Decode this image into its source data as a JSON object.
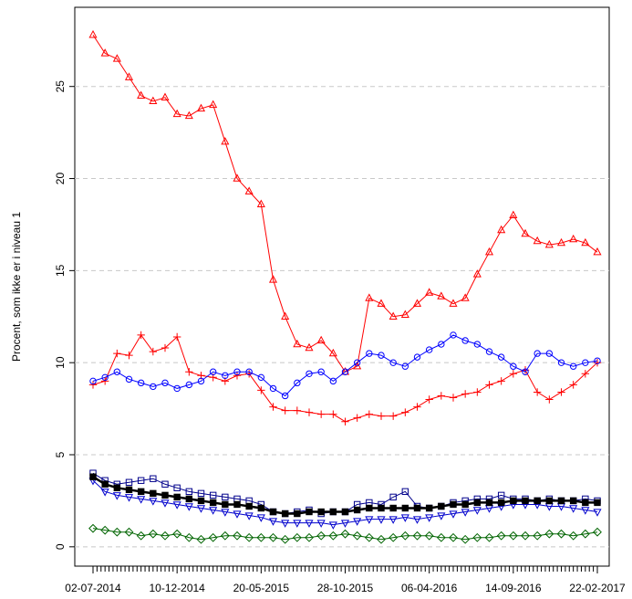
{
  "chart_data": {
    "type": "line",
    "y_label": "Procent, som ikke er i niveau 1",
    "categories": [
      "02-07-2014",
      null,
      null,
      null,
      null,
      null,
      null,
      "10-12-2014",
      null,
      null,
      null,
      null,
      null,
      null,
      "20-05-2015",
      null,
      null,
      null,
      null,
      null,
      null,
      "28-10-2015",
      null,
      null,
      null,
      null,
      null,
      null,
      "06-04-2016",
      null,
      null,
      null,
      null,
      null,
      null,
      "14-09-2016",
      null,
      null,
      null,
      null,
      null,
      null,
      "22-02-2017"
    ],
    "ylim": [
      -1.05,
      29.3
    ],
    "yticks": [
      0,
      5,
      10,
      15,
      20,
      25
    ],
    "grid": true,
    "series": [
      {
        "color": "#ff0000",
        "marker": "triangle-up",
        "values": [
          27.8,
          26.8,
          26.5,
          25.5,
          24.5,
          24.2,
          24.4,
          23.5,
          23.4,
          23.8,
          24.0,
          22.0,
          20.0,
          19.3,
          18.6,
          14.5,
          12.5,
          11.0,
          10.8,
          11.2,
          10.5,
          9.5,
          9.8,
          13.5,
          13.2,
          12.5,
          12.6,
          13.2,
          13.8,
          13.6,
          13.2,
          13.5,
          14.8,
          16.0,
          17.2,
          18.0,
          17.0,
          16.6,
          16.4,
          16.5,
          16.7,
          16.5,
          16.0
        ]
      },
      {
        "color": "#ff0000",
        "marker": "plus",
        "values": [
          8.8,
          9.0,
          10.5,
          10.4,
          11.5,
          10.6,
          10.8,
          11.4,
          9.5,
          9.3,
          9.2,
          9.0,
          9.3,
          9.4,
          8.5,
          7.6,
          7.4,
          7.4,
          7.3,
          7.2,
          7.2,
          6.8,
          7.0,
          7.2,
          7.1,
          7.1,
          7.3,
          7.6,
          8.0,
          8.2,
          8.1,
          8.3,
          8.4,
          8.8,
          9.0,
          9.4,
          9.6,
          8.4,
          8.0,
          8.4,
          8.8,
          9.4,
          10.0
        ]
      },
      {
        "color": "#0000ff",
        "marker": "circle",
        "values": [
          9.0,
          9.2,
          9.5,
          9.1,
          8.9,
          8.7,
          8.9,
          8.6,
          8.8,
          9.0,
          9.5,
          9.3,
          9.5,
          9.5,
          9.2,
          8.6,
          8.2,
          8.9,
          9.4,
          9.5,
          9.0,
          9.5,
          10.0,
          10.5,
          10.4,
          10.0,
          9.8,
          10.3,
          10.7,
          11.0,
          11.5,
          11.2,
          11.0,
          10.6,
          10.3,
          9.8,
          9.5,
          10.5,
          10.5,
          10.0,
          9.8,
          10.0,
          10.1
        ]
      },
      {
        "color": "#00008b",
        "marker": "square",
        "values": [
          4.0,
          3.6,
          3.4,
          3.5,
          3.6,
          3.7,
          3.4,
          3.2,
          3.0,
          2.9,
          2.8,
          2.7,
          2.6,
          2.5,
          2.3,
          1.9,
          1.8,
          1.9,
          2.0,
          1.8,
          1.9,
          1.9,
          2.3,
          2.4,
          2.3,
          2.7,
          3.0,
          2.2,
          2.1,
          2.2,
          2.4,
          2.5,
          2.6,
          2.6,
          2.8,
          2.6,
          2.6,
          2.5,
          2.6,
          2.5,
          2.5,
          2.6,
          2.5
        ]
      },
      {
        "color": "#0000cd",
        "marker": "triangle-down",
        "values": [
          3.6,
          3.0,
          2.8,
          2.7,
          2.6,
          2.5,
          2.4,
          2.3,
          2.2,
          2.1,
          2.0,
          1.9,
          1.8,
          1.7,
          1.6,
          1.4,
          1.3,
          1.3,
          1.3,
          1.3,
          1.2,
          1.3,
          1.4,
          1.5,
          1.5,
          1.5,
          1.6,
          1.5,
          1.6,
          1.7,
          1.8,
          1.9,
          2.0,
          2.1,
          2.2,
          2.3,
          2.3,
          2.3,
          2.2,
          2.2,
          2.1,
          2.0,
          1.9
        ]
      },
      {
        "color": "#000000",
        "marker": "filled-square",
        "values": [
          3.8,
          3.4,
          3.2,
          3.1,
          3.0,
          2.9,
          2.8,
          2.7,
          2.6,
          2.5,
          2.4,
          2.3,
          2.3,
          2.2,
          2.1,
          1.9,
          1.8,
          1.8,
          1.9,
          1.9,
          1.9,
          1.9,
          2.0,
          2.1,
          2.1,
          2.1,
          2.1,
          2.1,
          2.1,
          2.2,
          2.3,
          2.3,
          2.4,
          2.4,
          2.4,
          2.5,
          2.5,
          2.5,
          2.5,
          2.5,
          2.5,
          2.4,
          2.4
        ]
      },
      {
        "color": "#006400",
        "marker": "diamond",
        "values": [
          1.0,
          0.9,
          0.8,
          0.8,
          0.6,
          0.7,
          0.6,
          0.7,
          0.5,
          0.4,
          0.5,
          0.6,
          0.6,
          0.5,
          0.5,
          0.5,
          0.4,
          0.5,
          0.5,
          0.6,
          0.6,
          0.7,
          0.6,
          0.5,
          0.4,
          0.5,
          0.6,
          0.6,
          0.6,
          0.5,
          0.5,
          0.4,
          0.5,
          0.5,
          0.6,
          0.6,
          0.6,
          0.6,
          0.7,
          0.7,
          0.6,
          0.7,
          0.8
        ]
      }
    ]
  }
}
